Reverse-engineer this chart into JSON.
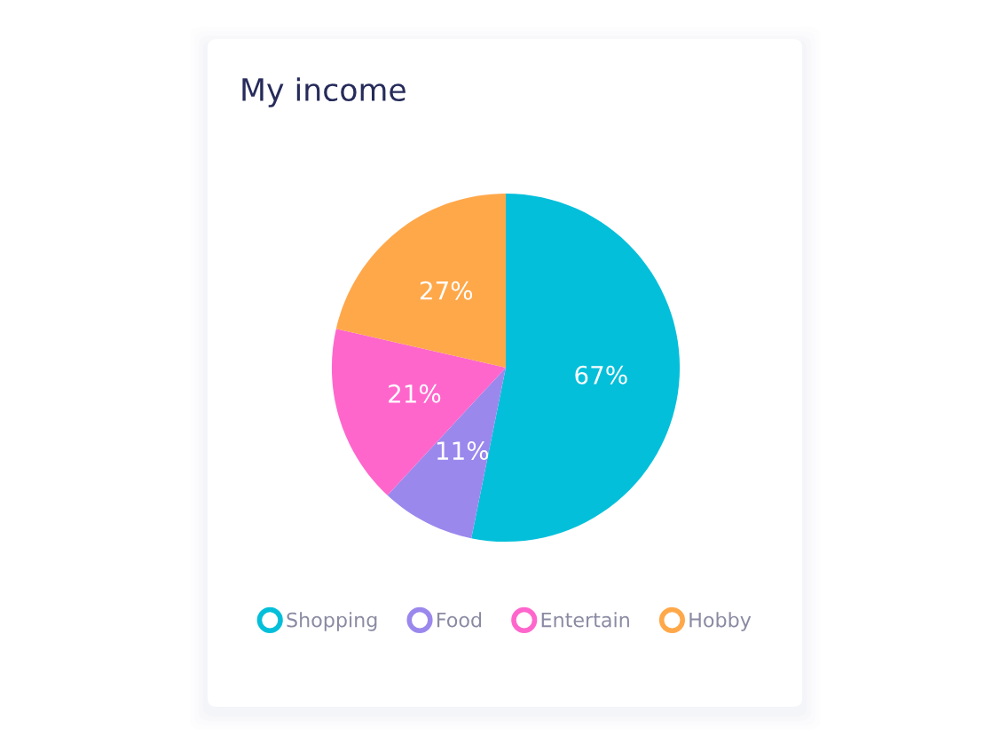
{
  "chart_data": {
    "type": "pie",
    "title": "My income",
    "categories": [
      "Shopping",
      "Food",
      "Entertain",
      "Hobby"
    ],
    "values": [
      67,
      11,
      21,
      27
    ],
    "value_labels": [
      "67%",
      "11%",
      "21%",
      "27%"
    ],
    "colors": [
      "#04bfda",
      "#9b88ed",
      "#ff66cc",
      "#ffa84a"
    ],
    "legend": "bottom"
  }
}
